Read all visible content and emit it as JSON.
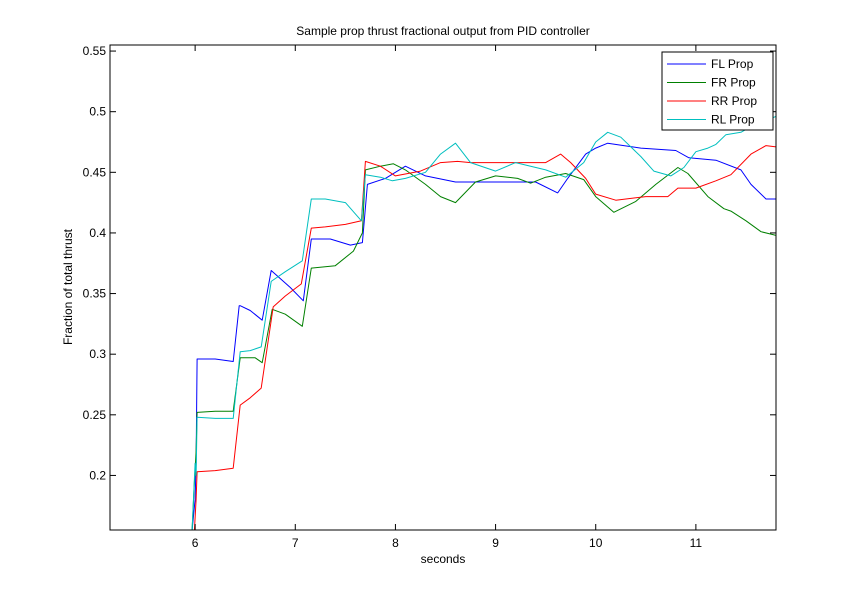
{
  "chart_data": {
    "type": "line",
    "title": "Sample prop thrust fractional output from PID controller",
    "xlabel": "seconds",
    "ylabel": "Fraction of total thrust",
    "xlim": [
      5.15,
      11.8
    ],
    "ylim": [
      0.155,
      0.555
    ],
    "xticks": [
      6,
      7,
      8,
      9,
      10,
      11
    ],
    "xtick_labels": [
      "6",
      "7",
      "8",
      "9",
      "10",
      "11"
    ],
    "yticks": [
      0.2,
      0.25,
      0.3,
      0.35,
      0.4,
      0.45,
      0.5,
      0.55
    ],
    "ytick_labels": [
      "0.2",
      "0.25",
      "0.3",
      "0.35",
      "0.4",
      "0.45",
      "0.5",
      "0.55"
    ],
    "grid": false,
    "legend_position": "top-right",
    "series": [
      {
        "name": "FL Prop",
        "color": "#0000ff",
        "x": [
          5.97,
          6.0,
          6.01,
          6.02,
          6.2,
          6.38,
          6.44,
          6.45,
          6.55,
          6.67,
          6.76,
          6.95,
          7.08,
          7.16,
          7.35,
          7.55,
          7.67,
          7.72,
          7.9,
          8.1,
          8.3,
          8.6,
          9.0,
          9.4,
          9.62,
          9.72,
          9.9,
          10.0,
          10.12,
          10.28,
          10.45,
          10.8,
          10.93,
          11.2,
          11.45,
          11.55,
          11.7,
          11.8
        ],
        "y": [
          0.155,
          0.18,
          0.21,
          0.296,
          0.296,
          0.294,
          0.34,
          0.34,
          0.336,
          0.328,
          0.369,
          0.355,
          0.344,
          0.395,
          0.395,
          0.39,
          0.392,
          0.44,
          0.445,
          0.455,
          0.447,
          0.442,
          0.442,
          0.442,
          0.433,
          0.445,
          0.465,
          0.47,
          0.474,
          0.472,
          0.47,
          0.468,
          0.462,
          0.46,
          0.452,
          0.44,
          0.428,
          0.428
        ]
      },
      {
        "name": "FR Prop",
        "color": "#008000",
        "x": [
          5.97,
          5.99,
          6.01,
          6.02,
          6.2,
          6.38,
          6.45,
          6.6,
          6.67,
          6.77,
          6.9,
          7.07,
          7.16,
          7.4,
          7.58,
          7.67,
          7.7,
          7.85,
          7.98,
          8.1,
          8.3,
          8.45,
          8.6,
          8.8,
          9.0,
          9.22,
          9.35,
          9.5,
          9.7,
          9.88,
          10.0,
          10.18,
          10.4,
          10.6,
          10.82,
          10.92,
          11.12,
          11.28,
          11.35,
          11.5,
          11.65,
          11.8
        ],
        "y": [
          0.155,
          0.19,
          0.22,
          0.252,
          0.253,
          0.253,
          0.297,
          0.297,
          0.293,
          0.337,
          0.333,
          0.323,
          0.371,
          0.373,
          0.385,
          0.4,
          0.452,
          0.455,
          0.457,
          0.452,
          0.44,
          0.43,
          0.425,
          0.442,
          0.447,
          0.445,
          0.441,
          0.446,
          0.449,
          0.444,
          0.43,
          0.417,
          0.426,
          0.44,
          0.454,
          0.449,
          0.43,
          0.42,
          0.418,
          0.41,
          0.401,
          0.398
        ]
      },
      {
        "name": "RR Prop",
        "color": "#ff0000",
        "x": [
          5.97,
          5.99,
          6.01,
          6.02,
          6.2,
          6.38,
          6.45,
          6.55,
          6.66,
          6.78,
          6.9,
          7.06,
          7.16,
          7.3,
          7.5,
          7.66,
          7.7,
          7.85,
          8.0,
          8.25,
          8.45,
          8.62,
          8.75,
          9.0,
          9.2,
          9.5,
          9.65,
          9.75,
          9.9,
          10.0,
          10.2,
          10.5,
          10.72,
          10.82,
          11.0,
          11.2,
          11.35,
          11.55,
          11.7,
          11.8
        ],
        "y": [
          0.155,
          0.15,
          0.18,
          0.203,
          0.204,
          0.206,
          0.258,
          0.264,
          0.272,
          0.339,
          0.348,
          0.358,
          0.404,
          0.405,
          0.407,
          0.41,
          0.459,
          0.455,
          0.447,
          0.451,
          0.458,
          0.459,
          0.458,
          0.458,
          0.458,
          0.458,
          0.465,
          0.458,
          0.445,
          0.432,
          0.427,
          0.43,
          0.43,
          0.437,
          0.437,
          0.443,
          0.448,
          0.465,
          0.472,
          0.471
        ]
      },
      {
        "name": "RL Prop",
        "color": "#00bfbf",
        "x": [
          5.97,
          6.0,
          6.01,
          6.02,
          6.2,
          6.38,
          6.45,
          6.55,
          6.66,
          6.76,
          6.9,
          7.07,
          7.16,
          7.3,
          7.5,
          7.66,
          7.7,
          7.85,
          7.97,
          8.1,
          8.3,
          8.45,
          8.6,
          8.75,
          9.0,
          9.2,
          9.5,
          9.7,
          9.88,
          10.0,
          10.12,
          10.25,
          10.45,
          10.58,
          10.75,
          10.88,
          11.0,
          11.12,
          11.2,
          11.3,
          11.45,
          11.6,
          11.8
        ],
        "y": [
          0.155,
          0.21,
          0.2,
          0.248,
          0.247,
          0.247,
          0.302,
          0.303,
          0.306,
          0.36,
          0.368,
          0.377,
          0.428,
          0.428,
          0.425,
          0.41,
          0.448,
          0.446,
          0.443,
          0.445,
          0.45,
          0.465,
          0.474,
          0.458,
          0.451,
          0.458,
          0.452,
          0.446,
          0.458,
          0.475,
          0.483,
          0.479,
          0.463,
          0.451,
          0.447,
          0.454,
          0.467,
          0.47,
          0.473,
          0.481,
          0.483,
          0.49,
          0.496
        ]
      }
    ]
  }
}
